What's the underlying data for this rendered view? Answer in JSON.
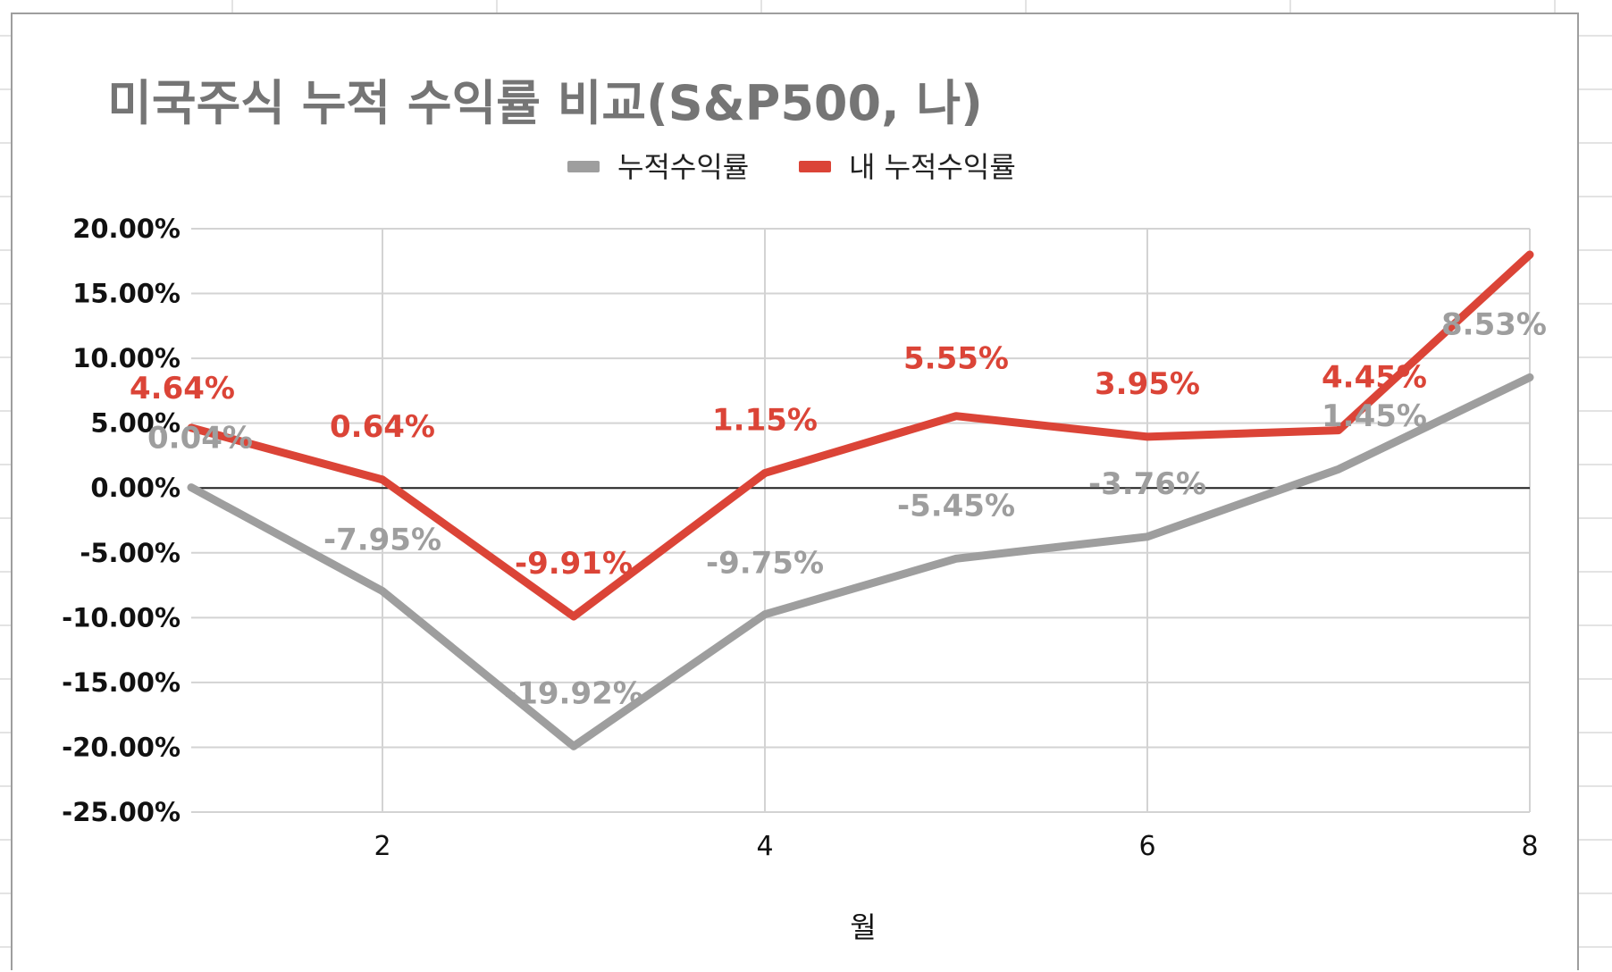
{
  "chart_data": {
    "type": "line",
    "title": "미국주식 누적 수익률 비교(S&P500, 나)",
    "xlabel": "월",
    "ylabel": "",
    "x": [
      1,
      2,
      3,
      4,
      5,
      6,
      7,
      8
    ],
    "xticks": [
      2,
      4,
      6,
      8
    ],
    "xlim": [
      1,
      8
    ],
    "ylim": [
      -0.25,
      0.2
    ],
    "yticks": [
      0.2,
      0.15,
      0.1,
      0.05,
      0.0,
      -0.05,
      -0.1,
      -0.15,
      -0.2,
      -0.25
    ],
    "ytick_labels": [
      "20.00%",
      "15.00%",
      "10.00%",
      "5.00%",
      "0.00%",
      "-5.00%",
      "-10.00%",
      "-15.00%",
      "-20.00%",
      "-25.00%"
    ],
    "xtick_labels": [
      "2",
      "4",
      "6",
      "8"
    ],
    "grid": true,
    "legend_position": "top",
    "series": [
      {
        "name": "누적수익률",
        "color": "#9e9e9e",
        "values": [
          0.0004,
          -0.0795,
          -0.1992,
          -0.0975,
          -0.0545,
          -0.0376,
          0.0145,
          0.0853
        ],
        "data_labels": [
          "0.04%",
          "-7.95%",
          "-19.92%",
          "-9.75%",
          "-5.45%",
          "-3.76%",
          "1.45%",
          "8.53%"
        ]
      },
      {
        "name": "내 누적수익률",
        "color": "#db4437",
        "values": [
          0.0464,
          0.0064,
          -0.0991,
          0.0115,
          0.0555,
          0.0395,
          0.0445,
          0.18
        ],
        "data_labels": [
          "4.64%",
          "0.64%",
          "-9.91%",
          "1.15%",
          "5.55%",
          "3.95%",
          "4.45%",
          ""
        ]
      }
    ]
  }
}
